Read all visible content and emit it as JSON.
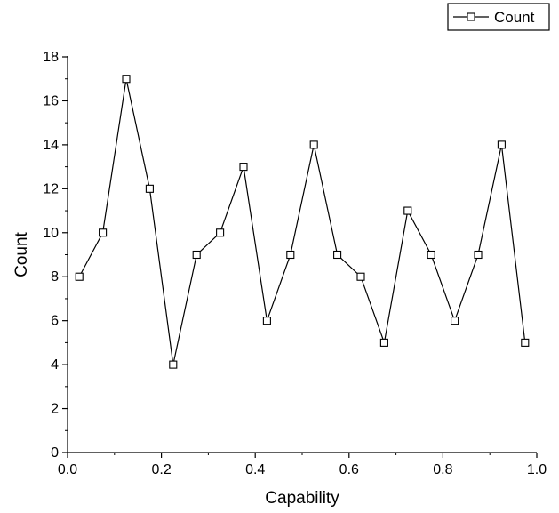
{
  "chart_data": {
    "type": "line",
    "title": "",
    "xlabel": "Capability",
    "ylabel": "Count",
    "xlim": [
      0.0,
      1.0
    ],
    "ylim": [
      0,
      18
    ],
    "x_ticks": [
      "0.0",
      "0.2",
      "0.4",
      "0.6",
      "0.8",
      "1.0"
    ],
    "y_ticks": [
      "0",
      "2",
      "4",
      "6",
      "8",
      "10",
      "12",
      "14",
      "16",
      "18"
    ],
    "grid": false,
    "legend_position": "top-right",
    "series": [
      {
        "name": "Count",
        "marker": "open-square",
        "color": "#000000",
        "x": [
          0.025,
          0.075,
          0.125,
          0.175,
          0.225,
          0.275,
          0.325,
          0.375,
          0.425,
          0.475,
          0.525,
          0.575,
          0.625,
          0.675,
          0.725,
          0.775,
          0.825,
          0.875,
          0.925,
          0.975
        ],
        "y": [
          8,
          10,
          17,
          12,
          4,
          9,
          10,
          13,
          6,
          9,
          14,
          9,
          8,
          5,
          11,
          9,
          6,
          9,
          14,
          5
        ]
      }
    ]
  }
}
